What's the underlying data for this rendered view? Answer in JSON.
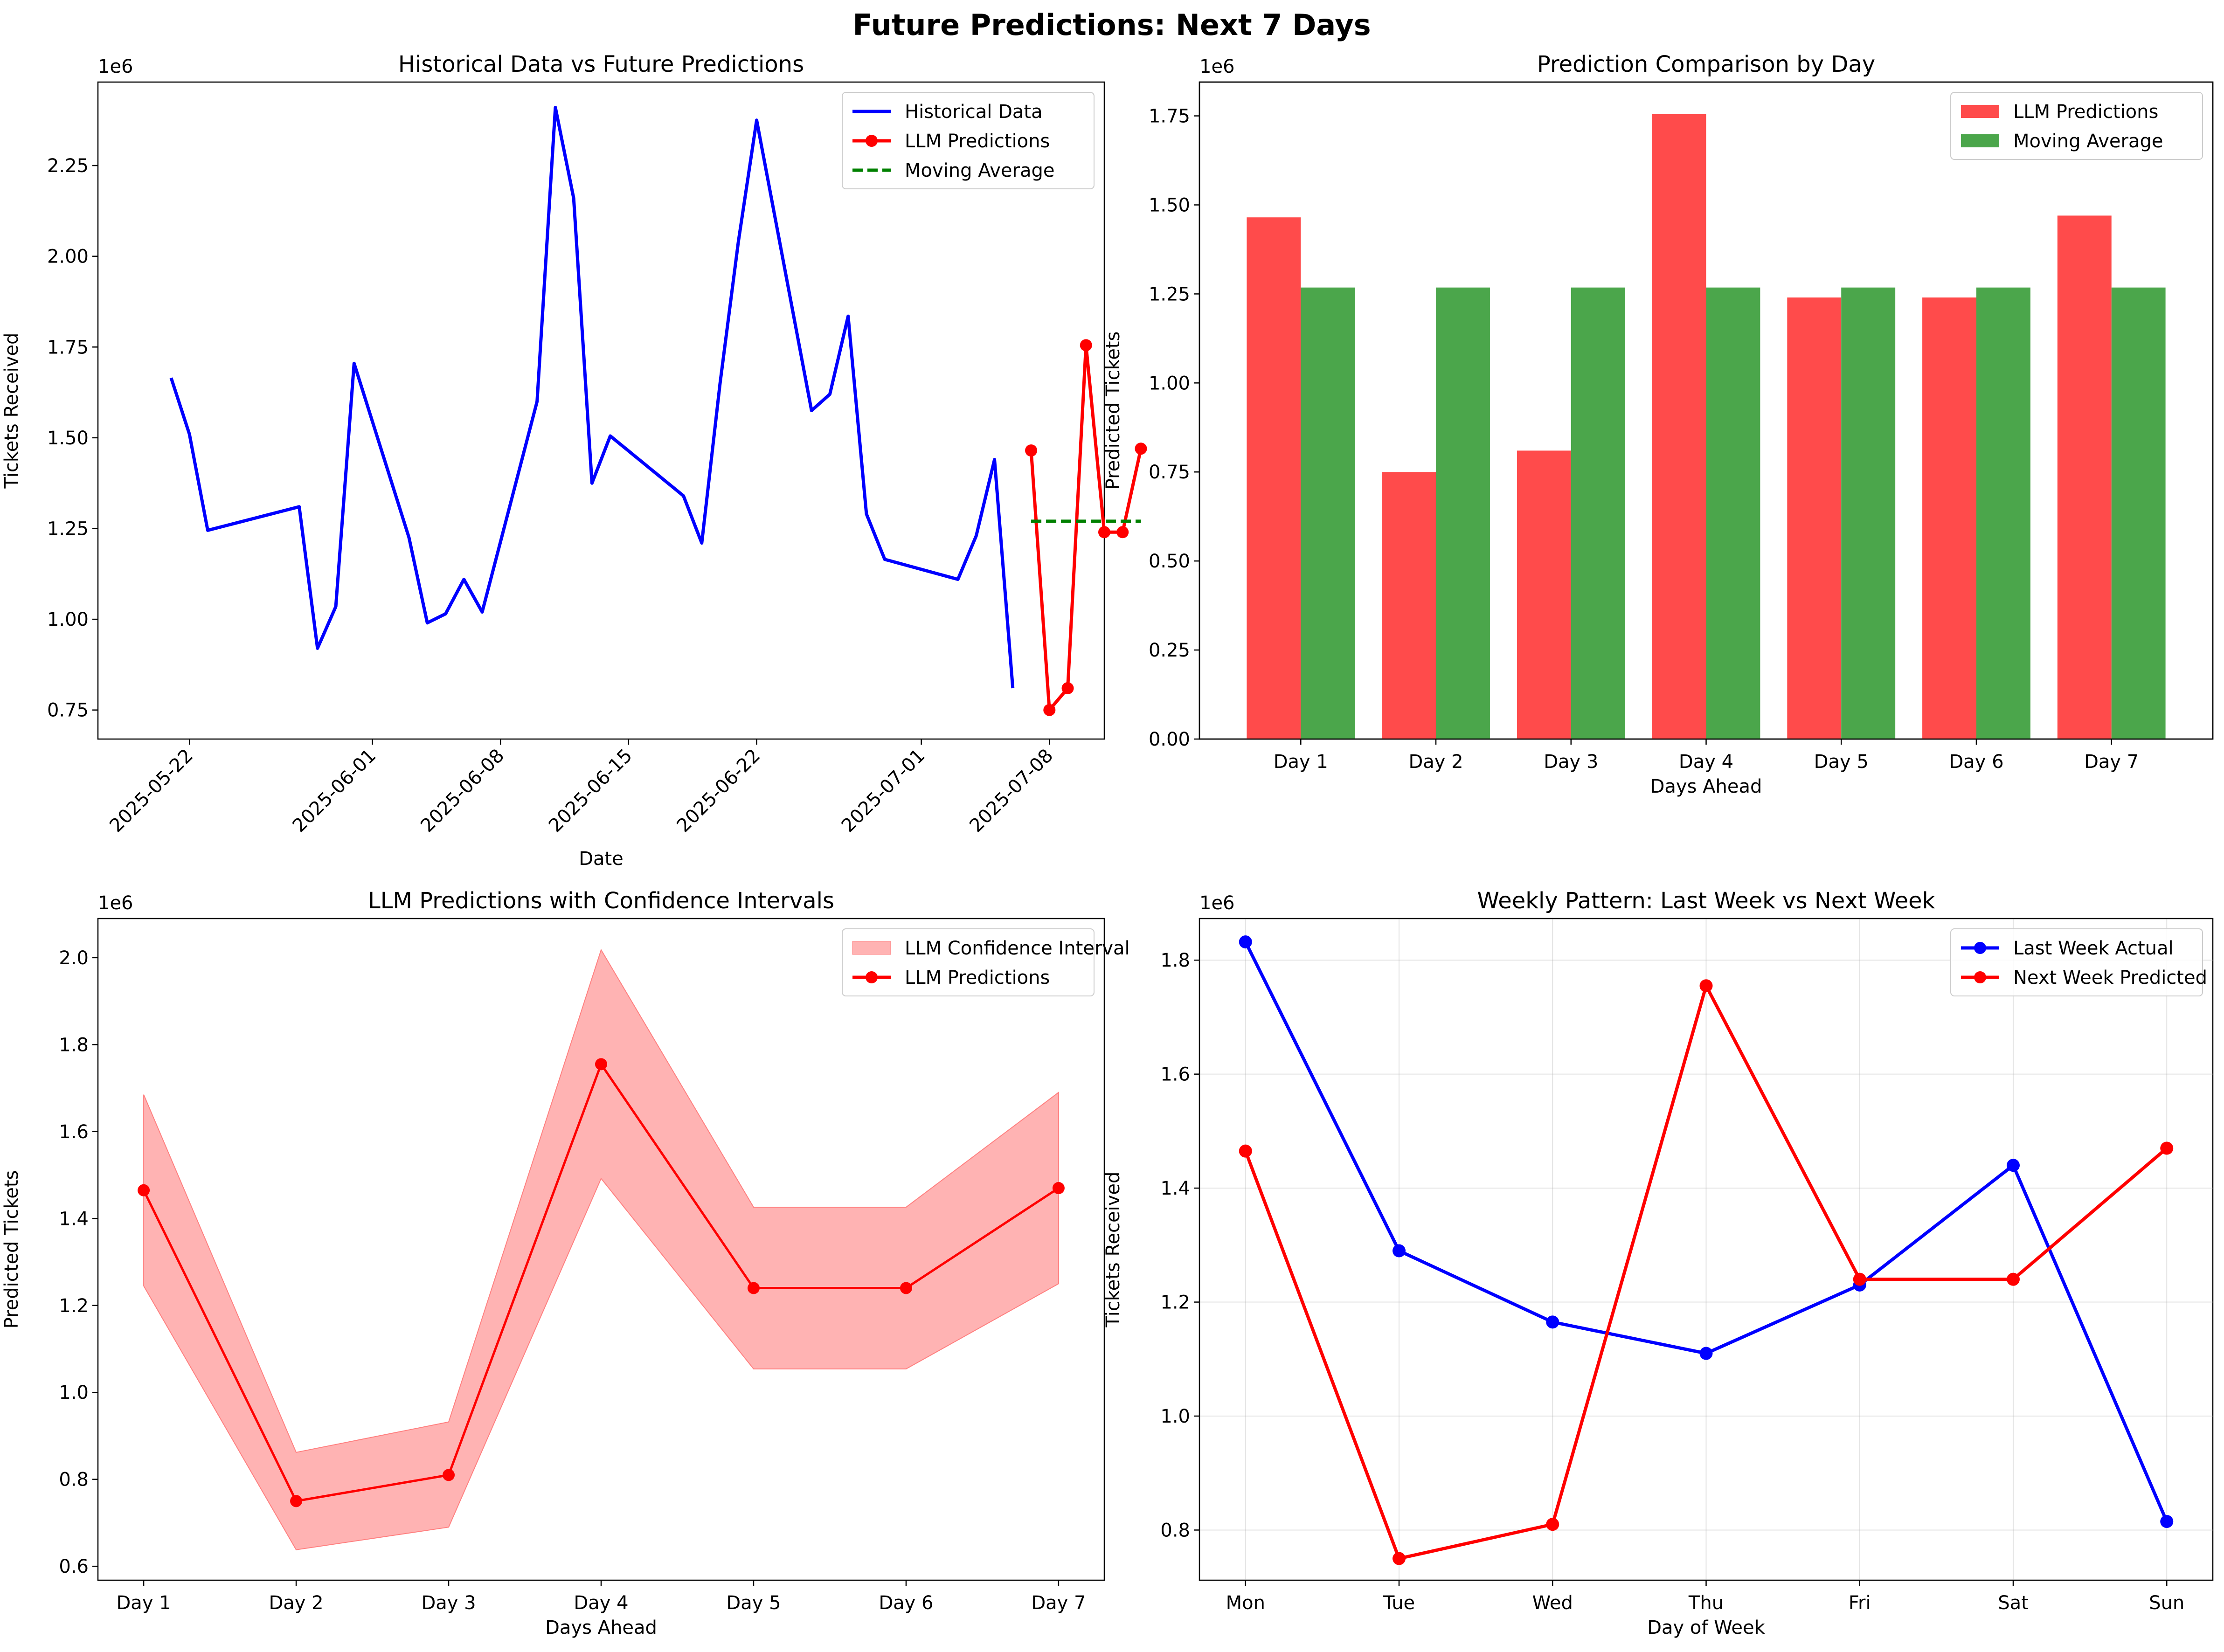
{
  "figure": {
    "title": "Future Predictions: Next 7 Days"
  },
  "chart_data": [
    {
      "type": "line",
      "title": "Historical Data vs Future Predictions",
      "xlabel": "Date",
      "ylabel": "Tickets Received",
      "y_multiplier": "1e6",
      "x_ticks": [
        "2025-05-22",
        "2025-06-01",
        "2025-06-08",
        "2025-06-15",
        "2025-06-22",
        "2025-07-01",
        "2025-07-08"
      ],
      "y_ticks": [
        "0.75",
        "1.00",
        "1.25",
        "1.50",
        "1.75",
        "2.00",
        "2.25"
      ],
      "xlim": [
        "2025-05-17",
        "2025-07-11"
      ],
      "ylim": [
        0.67,
        2.48
      ],
      "legend_position": "upper right",
      "grid": false,
      "series": [
        {
          "name": "Historical Data",
          "color": "#0000ff",
          "style": "solid",
          "points": [
            [
              "2025-05-21",
              1.665
            ],
            [
              "2025-05-22",
              1.51
            ],
            [
              "2025-05-23",
              1.245
            ],
            [
              "2025-05-28",
              1.31
            ],
            [
              "2025-05-29",
              0.92
            ],
            [
              "2025-05-30",
              1.035
            ],
            [
              "2025-05-31",
              1.705
            ],
            [
              "2025-06-03",
              1.225
            ],
            [
              "2025-06-04",
              0.99
            ],
            [
              "2025-06-05",
              1.015
            ],
            [
              "2025-06-06",
              1.11
            ],
            [
              "2025-06-07",
              1.02
            ],
            [
              "2025-06-10",
              1.6
            ],
            [
              "2025-06-11",
              2.41
            ],
            [
              "2025-06-12",
              2.16
            ],
            [
              "2025-06-13",
              1.375
            ],
            [
              "2025-06-14",
              1.505
            ],
            [
              "2025-06-18",
              1.34
            ],
            [
              "2025-06-19",
              1.21
            ],
            [
              "2025-06-20",
              1.65
            ],
            [
              "2025-06-21",
              2.04
            ],
            [
              "2025-06-22",
              2.375
            ],
            [
              "2025-06-25",
              1.575
            ],
            [
              "2025-06-26",
              1.62
            ],
            [
              "2025-06-27",
              1.835
            ],
            [
              "2025-06-28",
              1.29
            ],
            [
              "2025-06-29",
              1.165
            ],
            [
              "2025-07-03",
              1.11
            ],
            [
              "2025-07-04",
              1.23
            ],
            [
              "2025-07-05",
              1.44
            ],
            [
              "2025-07-06",
              0.81
            ]
          ]
        },
        {
          "name": "LLM Predictions",
          "color": "#ff0000",
          "style": "solid-markers",
          "points": [
            [
              "2025-07-07",
              1.465
            ],
            [
              "2025-07-08",
              0.75
            ],
            [
              "2025-07-09",
              0.81
            ],
            [
              "2025-07-10",
              1.755
            ],
            [
              "2025-07-11",
              1.24
            ],
            [
              "2025-07-12",
              1.24
            ],
            [
              "2025-07-13",
              1.47
            ]
          ]
        },
        {
          "name": "Moving Average",
          "color": "#008000",
          "style": "dashed",
          "points": [
            [
              "2025-07-07",
              1.27
            ],
            [
              "2025-07-13",
              1.27
            ]
          ]
        }
      ]
    },
    {
      "type": "bar",
      "title": "Prediction Comparison by Day",
      "xlabel": "Days Ahead",
      "ylabel": "Predicted Tickets",
      "y_multiplier": "1e6",
      "categories": [
        "Day 1",
        "Day 2",
        "Day 3",
        "Day 4",
        "Day 5",
        "Day 6",
        "Day 7"
      ],
      "y_ticks": [
        "0.00",
        "0.25",
        "0.50",
        "0.75",
        "1.00",
        "1.25",
        "1.50",
        "1.75"
      ],
      "ylim": [
        0,
        1.845
      ],
      "legend_position": "upper right",
      "grid": false,
      "series": [
        {
          "name": "LLM Predictions",
          "color": "#ff4b4b",
          "values": [
            1.465,
            0.75,
            0.81,
            1.755,
            1.24,
            1.24,
            1.47
          ]
        },
        {
          "name": "Moving Average",
          "color": "#4ba64b",
          "values": [
            1.268,
            1.268,
            1.268,
            1.268,
            1.268,
            1.268,
            1.268
          ]
        }
      ]
    },
    {
      "type": "line",
      "title": "LLM Predictions with Confidence Intervals",
      "xlabel": "Days Ahead",
      "ylabel": "Predicted Tickets",
      "y_multiplier": "1e6",
      "categories": [
        "Day 1",
        "Day 2",
        "Day 3",
        "Day 4",
        "Day 5",
        "Day 6",
        "Day 7"
      ],
      "y_ticks": [
        "0.6",
        "0.8",
        "1.0",
        "1.2",
        "1.4",
        "1.6",
        "1.8",
        "2.0"
      ],
      "ylim": [
        0.568,
        2.09
      ],
      "legend_position": "upper right",
      "grid": false,
      "band": {
        "name": "LLM Confidence Interval",
        "color": "#ffb3b3",
        "lower": [
          1.245,
          0.638,
          0.69,
          1.492,
          1.054,
          1.054,
          1.25
        ],
        "upper": [
          1.685,
          0.862,
          0.932,
          2.018,
          1.426,
          1.426,
          1.69
        ]
      },
      "series": [
        {
          "name": "LLM Predictions",
          "color": "#ff0000",
          "values": [
            1.465,
            0.75,
            0.81,
            1.755,
            1.24,
            1.24,
            1.47
          ]
        }
      ]
    },
    {
      "type": "line",
      "title": "Weekly Pattern: Last Week vs Next Week",
      "xlabel": "Day of Week",
      "ylabel": "Tickets Received",
      "y_multiplier": "1e6",
      "categories": [
        "Mon",
        "Tue",
        "Wed",
        "Thu",
        "Fri",
        "Sat",
        "Sun"
      ],
      "y_ticks": [
        "0.8",
        "1.0",
        "1.2",
        "1.4",
        "1.6",
        "1.8"
      ],
      "ylim": [
        0.712,
        1.873
      ],
      "legend_position": "upper right",
      "grid": true,
      "series": [
        {
          "name": "Last Week Actual",
          "color": "#0000ff",
          "values": [
            1.832,
            1.29,
            1.165,
            1.11,
            1.23,
            1.44,
            0.815
          ]
        },
        {
          "name": "Next Week Predicted",
          "color": "#ff0000",
          "values": [
            1.465,
            0.75,
            0.81,
            1.755,
            1.24,
            1.24,
            1.47
          ]
        }
      ]
    }
  ]
}
